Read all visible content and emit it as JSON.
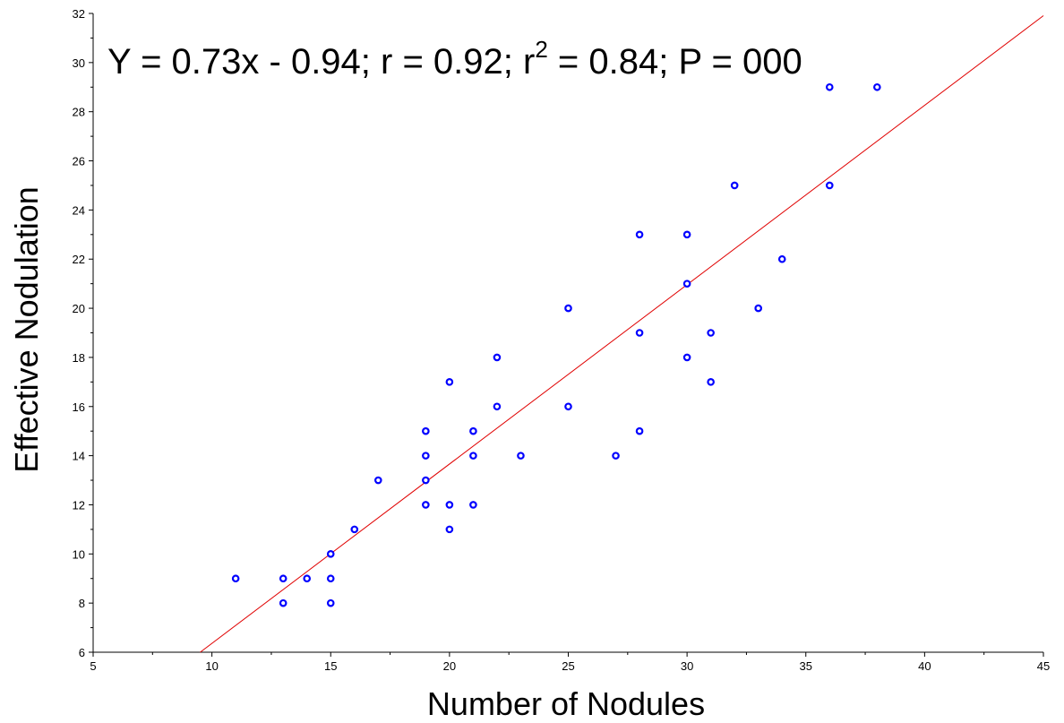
{
  "chart_data": {
    "type": "scatter",
    "title": "",
    "annotation": {
      "text_before_sup": "Y = 0.73x - 0.94; r = 0.92; r",
      "sup": "2",
      "text_after_sup": " = 0.84; P = 000"
    },
    "xlabel": "Number of Nodules",
    "ylabel": "Effective Nodulation",
    "xlim": [
      5,
      45
    ],
    "ylim": [
      6,
      32
    ],
    "xticks": [
      "5",
      "10",
      "15",
      "20",
      "25",
      "30",
      "35",
      "40",
      "45"
    ],
    "yticks": [
      "6",
      "8",
      "10",
      "12",
      "14",
      "16",
      "18",
      "20",
      "22",
      "24",
      "26",
      "28",
      "30",
      "32"
    ],
    "grid": false,
    "points": [
      {
        "x": 11,
        "y": 9
      },
      {
        "x": 13,
        "y": 9
      },
      {
        "x": 13,
        "y": 8
      },
      {
        "x": 14,
        "y": 9
      },
      {
        "x": 15,
        "y": 10
      },
      {
        "x": 15,
        "y": 9
      },
      {
        "x": 15,
        "y": 8
      },
      {
        "x": 16,
        "y": 11
      },
      {
        "x": 17,
        "y": 13
      },
      {
        "x": 19,
        "y": 15
      },
      {
        "x": 19,
        "y": 14
      },
      {
        "x": 19,
        "y": 13
      },
      {
        "x": 19,
        "y": 12
      },
      {
        "x": 20,
        "y": 17
      },
      {
        "x": 20,
        "y": 12
      },
      {
        "x": 20,
        "y": 11
      },
      {
        "x": 21,
        "y": 15
      },
      {
        "x": 21,
        "y": 14
      },
      {
        "x": 21,
        "y": 12
      },
      {
        "x": 22,
        "y": 18
      },
      {
        "x": 22,
        "y": 16
      },
      {
        "x": 23,
        "y": 14
      },
      {
        "x": 25,
        "y": 20
      },
      {
        "x": 25,
        "y": 16
      },
      {
        "x": 27,
        "y": 14
      },
      {
        "x": 28,
        "y": 23
      },
      {
        "x": 28,
        "y": 19
      },
      {
        "x": 28,
        "y": 15
      },
      {
        "x": 30,
        "y": 23
      },
      {
        "x": 30,
        "y": 21
      },
      {
        "x": 30,
        "y": 18
      },
      {
        "x": 31,
        "y": 19
      },
      {
        "x": 31,
        "y": 17
      },
      {
        "x": 32,
        "y": 25
      },
      {
        "x": 33,
        "y": 20
      },
      {
        "x": 34,
        "y": 22
      },
      {
        "x": 36,
        "y": 29
      },
      {
        "x": 36,
        "y": 25
      },
      {
        "x": 38,
        "y": 29
      }
    ],
    "regression": {
      "slope": 0.73,
      "intercept": -0.94
    },
    "colors": {
      "points": "#0000ff",
      "fit_line": "#e00000",
      "axes": "#000000"
    }
  }
}
